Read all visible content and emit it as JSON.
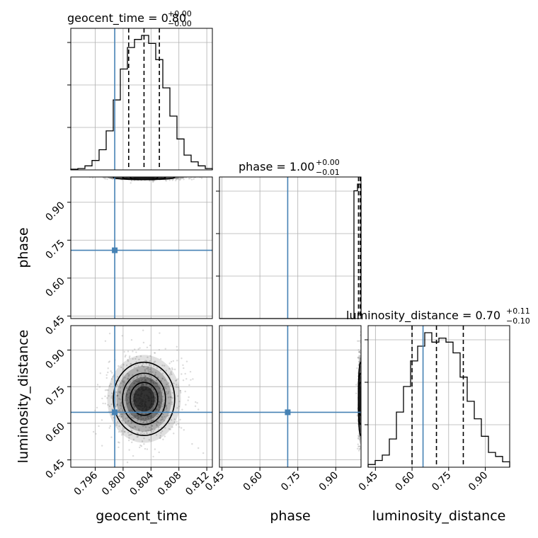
{
  "chart_data": {
    "type": "corner",
    "parameters": [
      "geocent_time",
      "phase",
      "luminosity_distance"
    ],
    "ranges": {
      "geocent_time": [
        0.7925,
        0.8128
      ],
      "phase": [
        0.44,
        1.0
      ],
      "luminosity_distance": [
        0.42,
        1.0
      ]
    },
    "injection": {
      "geocent_time": 0.7988,
      "phase": 0.71,
      "luminosity_distance": 0.645
    },
    "quantiles": {
      "geocent_time": [
        0.8008,
        0.803,
        0.8052
      ],
      "phase": [
        0.99,
        0.998,
        1.0
      ],
      "luminosity_distance": [
        0.6,
        0.7,
        0.81
      ]
    },
    "titles": {
      "geocent_time": {
        "value": "0.80",
        "plus": "+0.00",
        "minus": "−0.00",
        "prefix": "geocent_time = "
      },
      "phase": {
        "value": "1.00",
        "plus": "+0.00",
        "minus": "−0.01",
        "prefix": "phase = "
      },
      "luminosity_distance": {
        "value": "0.70",
        "plus": "+0.11",
        "minus": "−0.10",
        "prefix": "luminosity_distance = "
      }
    },
    "axis_labels": {
      "x": [
        "geocent_time",
        "phase",
        "luminosity_distance"
      ],
      "y": [
        "phase",
        "luminosity_distance"
      ]
    },
    "ticks": {
      "geocent_time": [
        "0.796",
        "0.800",
        "0.804",
        "0.808",
        "0.812"
      ],
      "phase": [
        "0.45",
        "0.60",
        "0.75",
        "0.90"
      ],
      "luminosity_distance": [
        "0.45",
        "0.60",
        "0.75",
        "0.90"
      ]
    },
    "hist_geocent_time": [
      0.005,
      0.01,
      0.03,
      0.07,
      0.15,
      0.29,
      0.52,
      0.75,
      0.91,
      0.97,
      1.0,
      0.94,
      0.82,
      0.61,
      0.4,
      0.23,
      0.11,
      0.06,
      0.03,
      0.01
    ],
    "hist_phase": [
      0,
      0,
      0,
      0,
      0,
      0,
      0,
      0,
      0,
      0,
      0,
      0,
      0,
      0,
      0,
      0,
      0,
      0,
      0,
      0,
      0,
      0,
      0,
      0,
      0,
      0,
      0,
      0,
      0,
      0,
      0,
      0,
      0,
      0,
      0,
      0,
      0,
      0,
      0.95,
      1.0
    ],
    "hist_luminosity_distance": [
      0.02,
      0.05,
      0.09,
      0.21,
      0.41,
      0.6,
      0.79,
      0.9,
      1.0,
      0.93,
      0.96,
      0.93,
      0.85,
      0.67,
      0.49,
      0.36,
      0.23,
      0.11,
      0.08,
      0.04
    ],
    "grid": true,
    "colors": {
      "truth": "#4682b4",
      "line": "#000000",
      "grid": "#b0b0b0"
    }
  }
}
